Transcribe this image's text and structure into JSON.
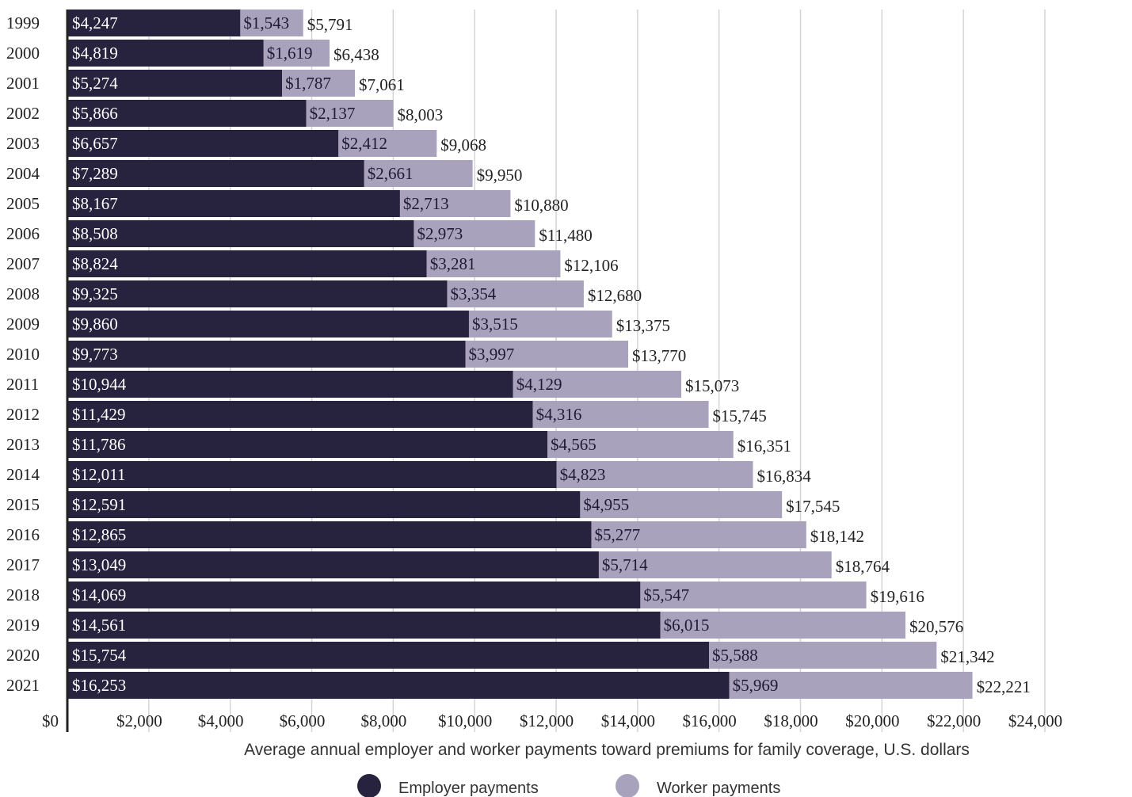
{
  "chart_data": {
    "type": "bar",
    "orientation": "horizontal",
    "stacked": true,
    "categories": [
      "1999",
      "2000",
      "2001",
      "2002",
      "2003",
      "2004",
      "2005",
      "2006",
      "2007",
      "2008",
      "2009",
      "2010",
      "2011",
      "2012",
      "2013",
      "2014",
      "2015",
      "2016",
      "2017",
      "2018",
      "2019",
      "2020",
      "2021"
    ],
    "series": [
      {
        "name": "Employer payments",
        "color": "#27223d",
        "values": [
          4247,
          4819,
          5274,
          5866,
          6657,
          7289,
          8167,
          8508,
          8824,
          9325,
          9860,
          9773,
          10944,
          11429,
          11786,
          12011,
          12591,
          12865,
          13049,
          14069,
          14561,
          15754,
          16253
        ],
        "labels": [
          "$4,247",
          "$4,819",
          "$5,274",
          "$5,866",
          "$6,657",
          "$7,289",
          "$8,167",
          "$8,508",
          "$8,824",
          "$9,325",
          "$9,860",
          "$9,773",
          "$10,944",
          "$11,429",
          "$11,786",
          "$12,011",
          "$12,591",
          "$12,865",
          "$13,049",
          "$14,069",
          "$14,561",
          "$15,754",
          "$16,253"
        ]
      },
      {
        "name": "Worker payments",
        "color": "#a8a2bd",
        "values": [
          1543,
          1619,
          1787,
          2137,
          2412,
          2661,
          2713,
          2973,
          3281,
          3354,
          3515,
          3997,
          4129,
          4316,
          4565,
          4823,
          4955,
          5277,
          5714,
          5547,
          6015,
          5588,
          5969
        ],
        "labels": [
          "$1,543",
          "$1,619",
          "$1,787",
          "$2,137",
          "$2,412",
          "$2,661",
          "$2,713",
          "$2,973",
          "$3,281",
          "$3,354",
          "$3,515",
          "$3,997",
          "$4,129",
          "$4,316",
          "$4,565",
          "$4,823",
          "$4,955",
          "$5,277",
          "$5,714",
          "$5,547",
          "$6,015",
          "$5,588",
          "$5,969"
        ]
      }
    ],
    "totals": [
      5791,
      6438,
      7061,
      8003,
      9068,
      9950,
      10880,
      11480,
      12106,
      12680,
      13375,
      13770,
      15073,
      15745,
      16351,
      16834,
      17545,
      18142,
      18764,
      19616,
      20576,
      21342,
      22221
    ],
    "total_labels": [
      "$5,791",
      "$6,438",
      "$7,061",
      "$8,003",
      "$9,068",
      "$9,950",
      "$10,880",
      "$11,480",
      "$12,106",
      "$12,680",
      "$13,375",
      "$13,770",
      "$15,073",
      "$15,745",
      "$16,351",
      "$16,834",
      "$17,545",
      "$18,142",
      "$18,764",
      "$19,616",
      "$20,576",
      "$21,342",
      "$22,221"
    ],
    "xticks": [
      0,
      2000,
      4000,
      6000,
      8000,
      10000,
      12000,
      14000,
      16000,
      18000,
      20000,
      22000,
      24000
    ],
    "xtick_labels": [
      "$0",
      "$2,000",
      "$4,000",
      "$6,000",
      "$8,000",
      "$10,000",
      "$12,000",
      "$14,000",
      "$16,000",
      "$18,000",
      "$20,000",
      "$22,000",
      "$24,000"
    ],
    "xlim": [
      0,
      24000
    ],
    "xlabel": "Average annual employer and worker payments toward premiums for family coverage, U.S. dollars",
    "grid": true,
    "legend_position": "bottom-center"
  }
}
